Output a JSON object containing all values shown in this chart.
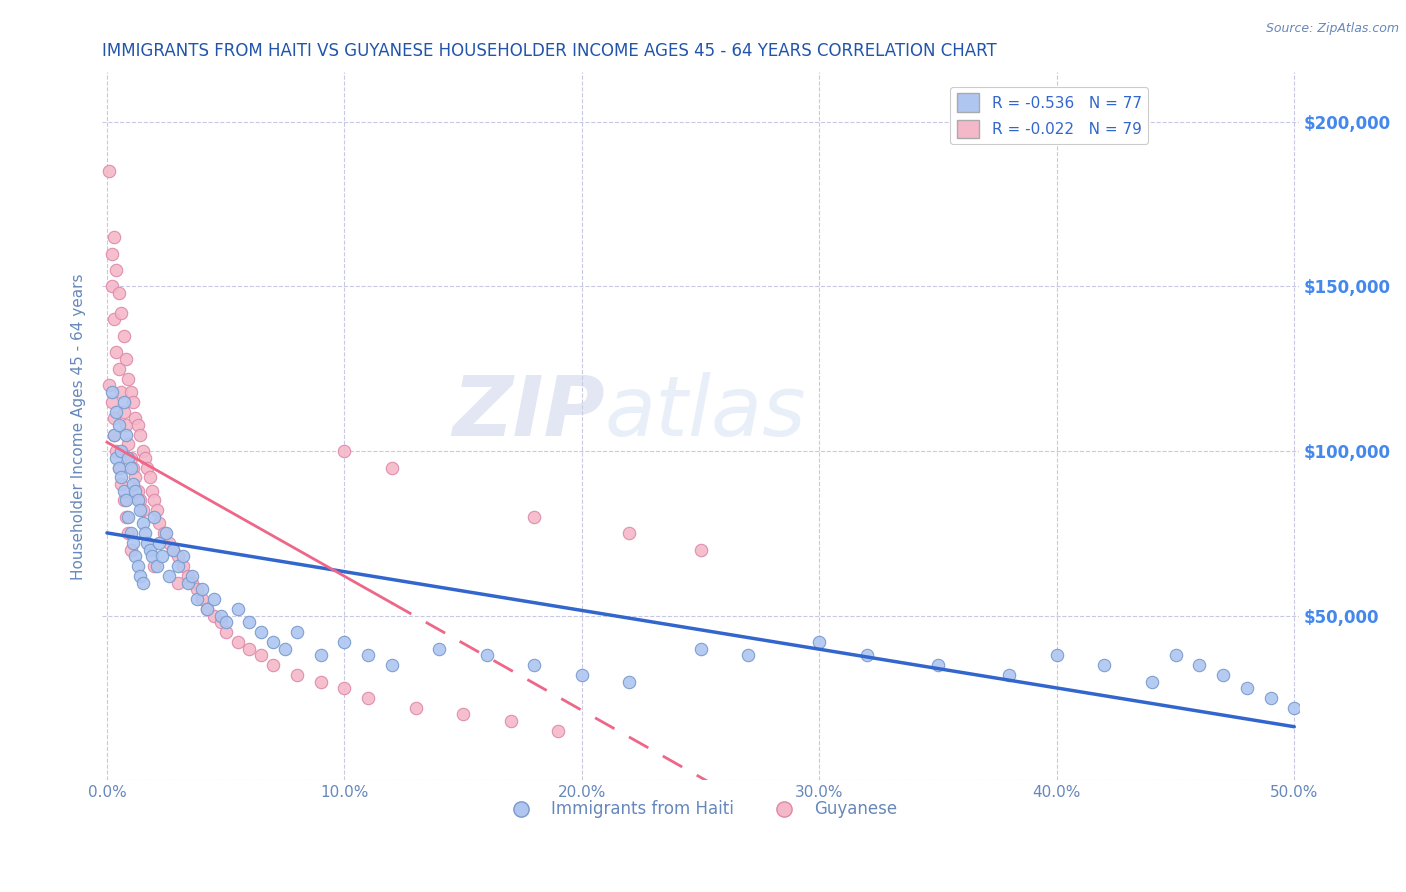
{
  "title": "IMMIGRANTS FROM HAITI VS GUYANESE HOUSEHOLDER INCOME AGES 45 - 64 YEARS CORRELATION CHART",
  "source": "Source: ZipAtlas.com",
  "ylabel": "Householder Income Ages 45 - 64 years",
  "xlim": [
    -0.002,
    0.502
  ],
  "ylim": [
    0,
    215000
  ],
  "xticks": [
    0.0,
    0.1,
    0.2,
    0.3,
    0.4,
    0.5
  ],
  "xticklabels": [
    "0.0%",
    "10.0%",
    "20.0%",
    "30.0%",
    "40.0%",
    "50.0%"
  ],
  "yticks": [
    0,
    50000,
    100000,
    150000,
    200000
  ],
  "legend_entries": [
    {
      "label": "R = -0.536   N = 77",
      "color": "#aec6f0"
    },
    {
      "label": "R = -0.022   N = 79",
      "color": "#f5b8c8"
    }
  ],
  "legend_labels": [
    "Immigrants from Haiti",
    "Guyanese"
  ],
  "watermark": "ZIPAtlas",
  "title_color": "#2255aa",
  "axis_label_color": "#6688bb",
  "tick_color": "#6688bb",
  "right_tick_color": "#4488ee",
  "grid_color": "#bbbbdd",
  "blue_dot_color": "#aec6f0",
  "blue_dot_edge": "#7799cc",
  "pink_dot_color": "#f5b8c8",
  "pink_dot_edge": "#dd88aa",
  "blue_line_color": "#3366cc",
  "pink_line_color": "#ee6688",
  "haiti_x": [
    0.002,
    0.003,
    0.004,
    0.004,
    0.005,
    0.005,
    0.006,
    0.006,
    0.007,
    0.007,
    0.008,
    0.008,
    0.009,
    0.009,
    0.01,
    0.01,
    0.011,
    0.011,
    0.012,
    0.012,
    0.013,
    0.013,
    0.014,
    0.014,
    0.015,
    0.015,
    0.016,
    0.017,
    0.018,
    0.019,
    0.02,
    0.021,
    0.022,
    0.023,
    0.025,
    0.026,
    0.028,
    0.03,
    0.032,
    0.034,
    0.036,
    0.038,
    0.04,
    0.042,
    0.045,
    0.048,
    0.05,
    0.055,
    0.06,
    0.065,
    0.07,
    0.075,
    0.08,
    0.09,
    0.1,
    0.11,
    0.12,
    0.14,
    0.16,
    0.18,
    0.2,
    0.22,
    0.25,
    0.27,
    0.3,
    0.32,
    0.35,
    0.38,
    0.4,
    0.42,
    0.44,
    0.45,
    0.46,
    0.47,
    0.48,
    0.49,
    0.5
  ],
  "haiti_y": [
    118000,
    105000,
    98000,
    112000,
    95000,
    108000,
    100000,
    92000,
    115000,
    88000,
    105000,
    85000,
    98000,
    80000,
    95000,
    75000,
    90000,
    72000,
    88000,
    68000,
    85000,
    65000,
    82000,
    62000,
    78000,
    60000,
    75000,
    72000,
    70000,
    68000,
    80000,
    65000,
    72000,
    68000,
    75000,
    62000,
    70000,
    65000,
    68000,
    60000,
    62000,
    55000,
    58000,
    52000,
    55000,
    50000,
    48000,
    52000,
    48000,
    45000,
    42000,
    40000,
    45000,
    38000,
    42000,
    38000,
    35000,
    40000,
    38000,
    35000,
    32000,
    30000,
    40000,
    38000,
    42000,
    38000,
    35000,
    32000,
    38000,
    35000,
    30000,
    38000,
    35000,
    32000,
    28000,
    25000,
    22000
  ],
  "guyanese_x": [
    0.001,
    0.002,
    0.002,
    0.003,
    0.003,
    0.004,
    0.004,
    0.005,
    0.005,
    0.006,
    0.006,
    0.007,
    0.007,
    0.008,
    0.008,
    0.009,
    0.009,
    0.01,
    0.01,
    0.011,
    0.011,
    0.012,
    0.012,
    0.013,
    0.013,
    0.014,
    0.014,
    0.015,
    0.015,
    0.016,
    0.017,
    0.018,
    0.019,
    0.02,
    0.021,
    0.022,
    0.024,
    0.026,
    0.028,
    0.03,
    0.032,
    0.034,
    0.036,
    0.038,
    0.04,
    0.042,
    0.045,
    0.048,
    0.05,
    0.055,
    0.06,
    0.065,
    0.07,
    0.08,
    0.09,
    0.1,
    0.11,
    0.13,
    0.15,
    0.17,
    0.19,
    0.001,
    0.002,
    0.003,
    0.003,
    0.004,
    0.005,
    0.006,
    0.007,
    0.008,
    0.009,
    0.01,
    0.02,
    0.03,
    0.1,
    0.12,
    0.18,
    0.22,
    0.25
  ],
  "guyanese_y": [
    185000,
    160000,
    150000,
    165000,
    140000,
    155000,
    130000,
    148000,
    125000,
    142000,
    118000,
    135000,
    112000,
    128000,
    108000,
    122000,
    102000,
    118000,
    98000,
    115000,
    95000,
    110000,
    92000,
    108000,
    88000,
    105000,
    85000,
    100000,
    82000,
    98000,
    95000,
    92000,
    88000,
    85000,
    82000,
    78000,
    75000,
    72000,
    70000,
    68000,
    65000,
    62000,
    60000,
    58000,
    55000,
    52000,
    50000,
    48000,
    45000,
    42000,
    40000,
    38000,
    35000,
    32000,
    30000,
    28000,
    25000,
    22000,
    20000,
    18000,
    15000,
    120000,
    115000,
    110000,
    105000,
    100000,
    95000,
    90000,
    85000,
    80000,
    75000,
    70000,
    65000,
    60000,
    100000,
    95000,
    80000,
    75000,
    70000
  ]
}
